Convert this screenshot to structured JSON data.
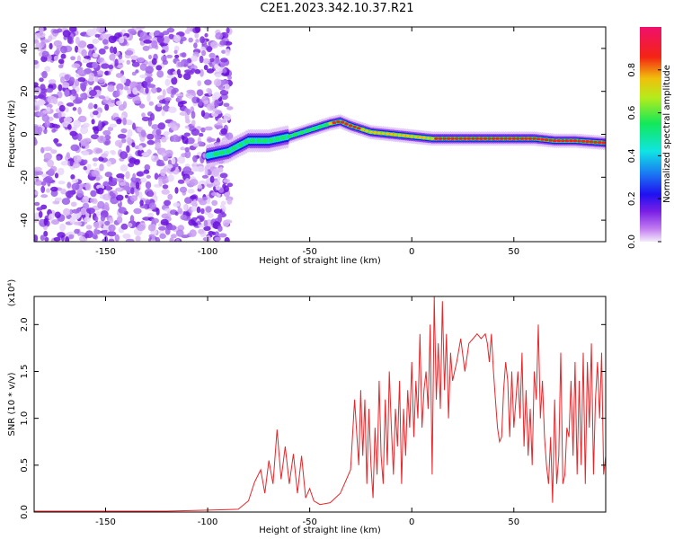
{
  "title": "C2E1.2023.342.10.37.R21",
  "chart_data": [
    {
      "type": "heatmap",
      "title": "",
      "xlabel": "Height of straight line (km)",
      "ylabel": "Frequency (Hz)",
      "xlim": [
        -185,
        95
      ],
      "ylim": [
        -50,
        50
      ],
      "xticks": [
        "-150",
        "-100",
        "-50",
        "0",
        "50"
      ],
      "yticks": [
        "-40",
        "-20",
        "0",
        "20",
        "40"
      ],
      "colorbar": {
        "label": "Normalized spectral amplitude",
        "range": [
          0.0,
          1.0
        ],
        "ticks": [
          "0.0",
          "0.2",
          "0.4",
          "0.6",
          "0.8"
        ]
      },
      "noise_region_x": [
        -185,
        -95
      ],
      "ridge": {
        "x": [
          -100,
          -90,
          -80,
          -70,
          -60,
          -50,
          -40,
          -35,
          -30,
          -20,
          -10,
          0,
          10,
          20,
          30,
          40,
          50,
          60,
          70,
          80,
          95
        ],
        "frequency": [
          -10,
          -8,
          -3,
          -3,
          -1,
          2,
          5,
          6,
          4,
          1,
          0,
          -1,
          -2,
          -2,
          -2,
          -2,
          -2,
          -2,
          -3,
          -3,
          -4
        ]
      },
      "grid": false
    },
    {
      "type": "line",
      "title": "",
      "xlabel": "Height of straight line (km)",
      "ylabel": "SNR (10 * v/v)",
      "y_multiplier": "(x10⁴)",
      "xlim": [
        -185,
        95
      ],
      "ylim": [
        0,
        2.3
      ],
      "xticks": [
        "-150",
        "-100",
        "-50",
        "0",
        "50"
      ],
      "yticks": [
        "0.0",
        "0.5",
        "1.0",
        "1.5",
        "2.0"
      ],
      "series": [
        {
          "color": "#e8262a",
          "x": [
            -185,
            -150,
            -120,
            -100,
            -85,
            -80,
            -77,
            -74,
            -72,
            -70,
            -68,
            -66,
            -64,
            -62,
            -60,
            -58,
            -56,
            -54,
            -52,
            -50,
            -48,
            -45,
            -40,
            -35,
            -30,
            -28,
            -26,
            -25,
            -24,
            -23,
            -22,
            -21,
            -20,
            -19,
            -18,
            -17,
            -16,
            -15,
            -14,
            -13,
            -12,
            -11,
            -10,
            -9,
            -8,
            -7,
            -6,
            -5,
            -4,
            -3,
            -2,
            -1,
            0,
            1,
            2,
            3,
            4,
            5,
            6,
            7,
            8,
            9,
            10,
            11,
            12,
            13,
            14,
            15,
            16,
            17,
            18,
            19,
            20,
            22,
            24,
            26,
            28,
            30,
            32,
            34,
            36,
            37,
            38,
            39,
            40,
            41,
            42,
            43,
            44,
            45,
            46,
            47,
            48,
            49,
            50,
            51,
            52,
            53,
            54,
            55,
            56,
            57,
            58,
            59,
            60,
            61,
            62,
            63,
            64,
            65,
            66,
            67,
            68,
            69,
            70,
            71,
            72,
            73,
            74,
            75,
            76,
            77,
            78,
            79,
            80,
            81,
            82,
            83,
            84,
            85,
            86,
            87,
            88,
            89,
            90,
            91,
            92,
            93,
            94,
            95
          ],
          "values": [
            0.01,
            0.01,
            0.01,
            0.02,
            0.03,
            0.12,
            0.32,
            0.45,
            0.2,
            0.55,
            0.3,
            0.88,
            0.35,
            0.7,
            0.3,
            0.62,
            0.2,
            0.6,
            0.15,
            0.25,
            0.12,
            0.08,
            0.1,
            0.2,
            0.45,
            1.2,
            0.5,
            1.3,
            0.6,
            1.2,
            0.3,
            1.1,
            0.5,
            0.15,
            0.9,
            0.4,
            1.4,
            0.6,
            0.3,
            1.2,
            0.5,
            1.5,
            0.9,
            0.4,
            1.1,
            0.7,
            1.4,
            0.3,
            1.1,
            0.6,
            1.3,
            0.9,
            1.6,
            0.8,
            1.4,
            1.0,
            1.9,
            0.9,
            1.3,
            1.5,
            1.1,
            2.0,
            0.4,
            2.3,
            1.2,
            1.8,
            1.1,
            2.25,
            1.3,
            1.9,
            1.0,
            1.7,
            1.4,
            1.6,
            1.85,
            1.5,
            1.8,
            1.85,
            1.9,
            1.85,
            1.9,
            1.8,
            1.6,
            1.9,
            1.5,
            1.2,
            0.9,
            0.75,
            0.8,
            1.3,
            1.6,
            1.4,
            0.8,
            1.5,
            0.9,
            1.2,
            1.5,
            1.0,
            1.7,
            0.7,
            1.3,
            0.6,
            1.1,
            0.5,
            1.5,
            1.2,
            2.0,
            1.0,
            1.4,
            0.8,
            0.5,
            0.3,
            0.8,
            0.1,
            1.2,
            0.3,
            0.6,
            1.7,
            0.3,
            0.4,
            0.9,
            0.8,
            1.4,
            0.6,
            1.6,
            0.4,
            1.4,
            0.5,
            1.7,
            0.3,
            1.6,
            0.9,
            1.8,
            0.4,
            1.2,
            1.6,
            1.0,
            1.7,
            0.4,
            0.6
          ]
        }
      ],
      "grid": false
    }
  ]
}
